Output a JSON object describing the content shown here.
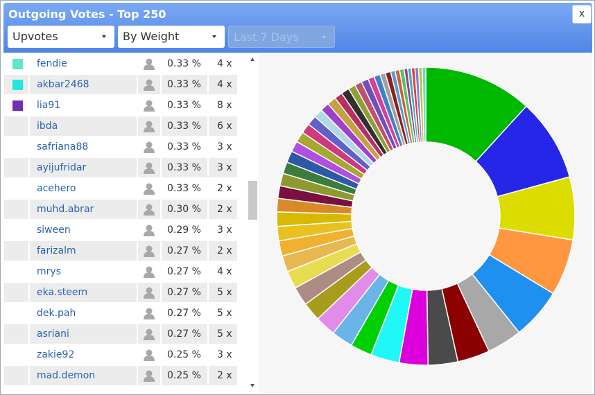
{
  "header": {
    "title": "Outgoing Votes - Top 250",
    "close": "x",
    "filters": [
      "Upvotes",
      "By Weight",
      "Last 7 Days"
    ]
  },
  "table": {
    "rows": [
      {
        "color": "#5ee8c8",
        "name": "fendie",
        "percent": "0.33 %",
        "count": "4 x"
      },
      {
        "color": "#22e8dc",
        "name": "akbar2468",
        "percent": "0.33 %",
        "count": "4 x"
      },
      {
        "color": "#7030b0",
        "name": "lia91",
        "percent": "0.33 %",
        "count": "8 x"
      },
      {
        "name": "ibda",
        "percent": "0.33 %",
        "count": "6 x"
      },
      {
        "name": "safriana88",
        "percent": "0.33 %",
        "count": "3 x"
      },
      {
        "name": "ayijufridar",
        "percent": "0.33 %",
        "count": "3 x"
      },
      {
        "name": "acehero",
        "percent": "0.33 %",
        "count": "2 x"
      },
      {
        "name": "muhd.abrar",
        "percent": "0.30 %",
        "count": "2 x"
      },
      {
        "name": "siween",
        "percent": "0.29 %",
        "count": "3 x"
      },
      {
        "name": "farizalm",
        "percent": "0.27 %",
        "count": "2 x"
      },
      {
        "name": "mrys",
        "percent": "0.27 %",
        "count": "4 x"
      },
      {
        "name": "eka.steem",
        "percent": "0.27 %",
        "count": "5 x"
      },
      {
        "name": "dek.pah",
        "percent": "0.27 %",
        "count": "5 x"
      },
      {
        "name": "asriani",
        "percent": "0.27 %",
        "count": "5 x"
      },
      {
        "name": "zakie92",
        "percent": "0.25 %",
        "count": "3 x"
      },
      {
        "name": "mad.demon",
        "percent": "0.25 %",
        "count": "2 x"
      }
    ]
  },
  "chart_data": {
    "type": "pie",
    "values": [
      12.1,
      9.2,
      7,
      6.3,
      5.7,
      3.9,
      3.6,
      3.3,
      3.2,
      3.2,
      2.4,
      2.4,
      2.3,
      2.1,
      2.1,
      2.0,
      1.8,
      1.7,
      1.6,
      1.6,
      1.5,
      1.4,
      1.4,
      1.3,
      1.3,
      1.2,
      1.2,
      1.1,
      1.1,
      1.0,
      1.0,
      1.0,
      0.9,
      0.9,
      0.8,
      0.8,
      0.8,
      0.7,
      0.7,
      0.6,
      0.6,
      0.5,
      0.5,
      0.5,
      0.4,
      0.4,
      0.4,
      0.4,
      0.4,
      0.4
    ],
    "colors": [
      "#00b800",
      "#2626e8",
      "#dcdc00",
      "#ff9640",
      "#2090f0",
      "#a8a8a8",
      "#8b0000",
      "#4a4a4a",
      "#dc00dc",
      "#20f8f8",
      "#00d000",
      "#6ab4e8",
      "#e08ce8",
      "#a89c1c",
      "#ac8c84",
      "#e8dc50",
      "#e8b850",
      "#f0b030",
      "#e8c020",
      "#d8b800",
      "#d88a28",
      "#7a1040",
      "#8c9a30",
      "#3c7c3c",
      "#2c5aa8",
      "#b050e0",
      "#a8a830",
      "#d03880",
      "#6060c8",
      "#b0d8e8",
      "#a040c8",
      "#c8a040",
      "#b83060",
      "#303030",
      "#90a030",
      "#c05070",
      "#7050b8",
      "#d040a0",
      "#4080c8",
      "#a0a0a0",
      "#8a2020",
      "#50a0d0",
      "#d06040",
      "#60c060",
      "#9040a0",
      "#40b0b0",
      "#e04040",
      "#8080e0",
      "#c0c040",
      "#60e0c0"
    ]
  }
}
